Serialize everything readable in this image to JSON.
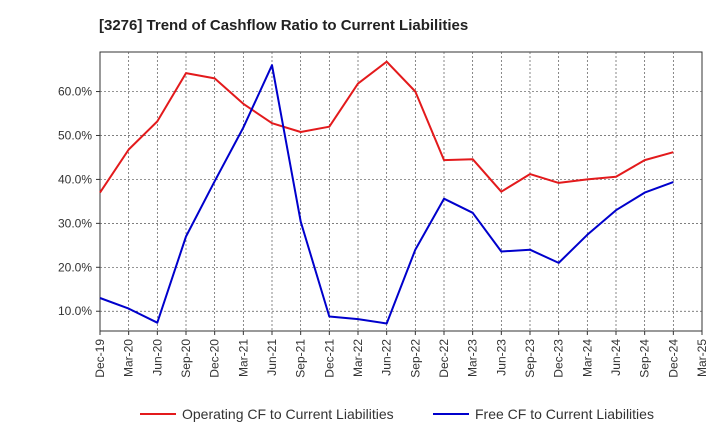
{
  "chart_data": {
    "type": "line",
    "title": "[3276]  Trend of Cashflow Ratio to Current Liabilities",
    "xlabel": "",
    "ylabel": "",
    "x": [
      "Dec-19",
      "Mar-20",
      "Jun-20",
      "Sep-20",
      "Dec-20",
      "Mar-21",
      "Jun-21",
      "Sep-21",
      "Dec-21",
      "Mar-22",
      "Jun-22",
      "Sep-22",
      "Dec-22",
      "Mar-23",
      "Jun-23",
      "Sep-23",
      "Dec-23",
      "Mar-24",
      "Jun-24",
      "Sep-24",
      "Dec-24",
      "Mar-25"
    ],
    "ylim": [
      5.5,
      69
    ],
    "yticks": [
      10,
      20,
      30,
      40,
      50,
      60
    ],
    "ytick_labels": [
      "10.0%",
      "20.0%",
      "30.0%",
      "40.0%",
      "50.0%",
      "60.0%"
    ],
    "grid": true,
    "legend_position": "bottom",
    "series": [
      {
        "name": "Operating CF to Current Liabilities",
        "color": "#e31a1c",
        "values": [
          37.0,
          46.8,
          53.2,
          64.2,
          63.0,
          57.2,
          52.8,
          50.8,
          52.0,
          61.8,
          66.8,
          60.0,
          44.4,
          44.6,
          37.2,
          41.2,
          39.2,
          40.0,
          40.6,
          44.4,
          46.2,
          null
        ]
      },
      {
        "name": "Free CF to Current Liabilities",
        "color": "#0000cc",
        "values": [
          13.0,
          10.6,
          7.4,
          27.0,
          39.6,
          51.8,
          66.0,
          30.4,
          8.8,
          8.2,
          7.2,
          24.0,
          35.6,
          32.4,
          23.6,
          24.0,
          21.0,
          27.4,
          33.0,
          37.0,
          39.4,
          null
        ]
      }
    ]
  }
}
